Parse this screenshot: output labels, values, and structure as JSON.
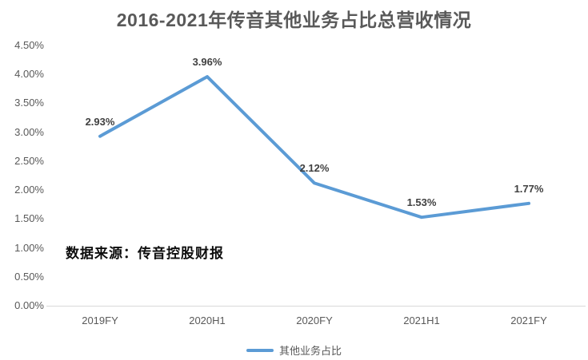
{
  "title": "2016-2021年传音其他业务占比总营收情况",
  "source_note": "数据来源：传音控股财报",
  "legend": {
    "label": "其他业务占比"
  },
  "colors": {
    "line": "#5b9bd5",
    "title_text": "#595959",
    "axis_text": "#595959",
    "data_label_text": "#404040",
    "axis_line": "#d9d9d9",
    "source_text": "#0d0d0d"
  },
  "chart_data": {
    "type": "line",
    "title": "2016-2021年传音其他业务占比总营收情况",
    "categories": [
      "2019FY",
      "2020H1",
      "2020FY",
      "2021H1",
      "2021FY"
    ],
    "series": [
      {
        "name": "其他业务占比",
        "values": [
          2.93,
          3.96,
          2.12,
          1.53,
          1.77
        ],
        "color": "#5b9bd5"
      }
    ],
    "data_labels": [
      "2.93%",
      "3.96%",
      "2.12%",
      "1.53%",
      "1.77%"
    ],
    "y_tick_labels": [
      "4.50%",
      "4.00%",
      "3.50%",
      "3.00%",
      "2.50%",
      "2.00%",
      "1.50%",
      "1.00%",
      "0.50%",
      "0.00%"
    ],
    "ylim": [
      0,
      4.5
    ],
    "y_tick_step": 0.5,
    "xlabel": "",
    "ylabel": "",
    "grid": false,
    "legend_position": "bottom-center",
    "markers": false
  }
}
